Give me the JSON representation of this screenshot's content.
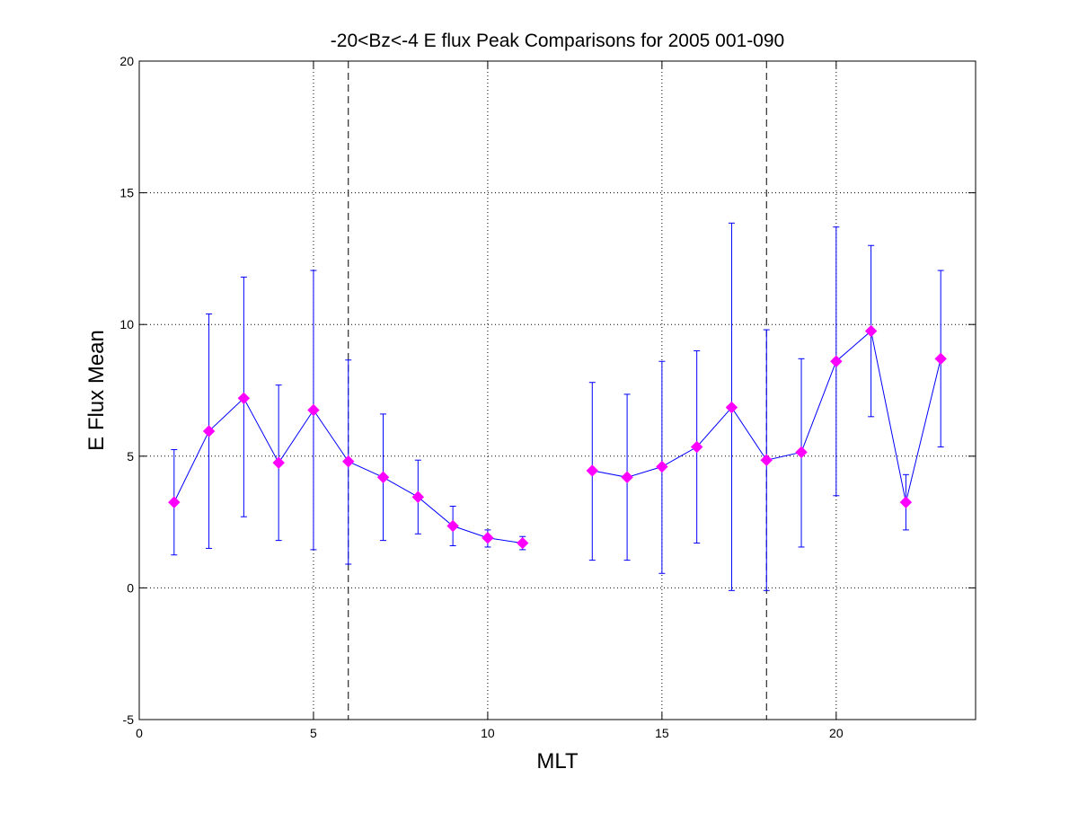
{
  "chart_data": {
    "type": "line",
    "title": "-20<Bz<-4 E flux Peak Comparisons for 2005 001-090",
    "xlabel": "MLT",
    "ylabel": "E Flux Mean",
    "xlim": [
      0,
      24
    ],
    "ylim": [
      -5,
      20
    ],
    "xticks": [
      0,
      5,
      10,
      15,
      20
    ],
    "yticks": [
      -5,
      0,
      5,
      10,
      15,
      20
    ],
    "xtick_labels": [
      "0",
      "5",
      "10",
      "15",
      "20"
    ],
    "ytick_labels": [
      "-5",
      "0",
      "5",
      "10",
      "15",
      "20"
    ],
    "grid": true,
    "grid_style": "dotted",
    "reference_lines_x": [
      6,
      18
    ],
    "series": [
      {
        "color": "#0000ff",
        "marker": "diamond",
        "marker_color": "#ff00ff",
        "segments": [
          [
            {
              "x": 1,
              "y": 3.25,
              "err_low": 1.25,
              "err_high": 5.25
            },
            {
              "x": 2,
              "y": 5.95,
              "err_low": 1.5,
              "err_high": 10.4
            },
            {
              "x": 3,
              "y": 7.2,
              "err_low": 2.7,
              "err_high": 11.8
            },
            {
              "x": 4,
              "y": 4.75,
              "err_low": 1.8,
              "err_high": 7.7
            },
            {
              "x": 5,
              "y": 6.75,
              "err_low": 1.45,
              "err_high": 12.05
            },
            {
              "x": 6,
              "y": 4.8,
              "err_low": 0.9,
              "err_high": 8.65
            },
            {
              "x": 7,
              "y": 4.2,
              "err_low": 1.8,
              "err_high": 6.6
            },
            {
              "x": 8,
              "y": 3.45,
              "err_low": 2.05,
              "err_high": 4.85
            },
            {
              "x": 9,
              "y": 2.35,
              "err_low": 1.6,
              "err_high": 3.1
            },
            {
              "x": 10,
              "y": 1.9,
              "err_low": 1.55,
              "err_high": 2.2
            },
            {
              "x": 11,
              "y": 1.7,
              "err_low": 1.45,
              "err_high": 1.95
            }
          ],
          [
            {
              "x": 13,
              "y": 4.45,
              "err_low": 1.05,
              "err_high": 7.8
            },
            {
              "x": 14,
              "y": 4.2,
              "err_low": 1.05,
              "err_high": 7.35
            },
            {
              "x": 15,
              "y": 4.6,
              "err_low": 0.55,
              "err_high": 8.6
            },
            {
              "x": 16,
              "y": 5.35,
              "err_low": 1.7,
              "err_high": 9.0
            },
            {
              "x": 17,
              "y": 6.85,
              "err_low": -0.1,
              "err_high": 13.85
            },
            {
              "x": 18,
              "y": 4.85,
              "err_low": -0.1,
              "err_high": 9.8
            },
            {
              "x": 19,
              "y": 5.15,
              "err_low": 1.55,
              "err_high": 8.7
            },
            {
              "x": 20,
              "y": 8.6,
              "err_low": 3.5,
              "err_high": 13.7
            },
            {
              "x": 21,
              "y": 9.75,
              "err_low": 6.5,
              "err_high": 13.0
            },
            {
              "x": 22,
              "y": 3.25,
              "err_low": 2.2,
              "err_high": 4.3
            },
            {
              "x": 23,
              "y": 8.7,
              "err_low": 5.35,
              "err_high": 12.05
            }
          ]
        ]
      }
    ]
  }
}
